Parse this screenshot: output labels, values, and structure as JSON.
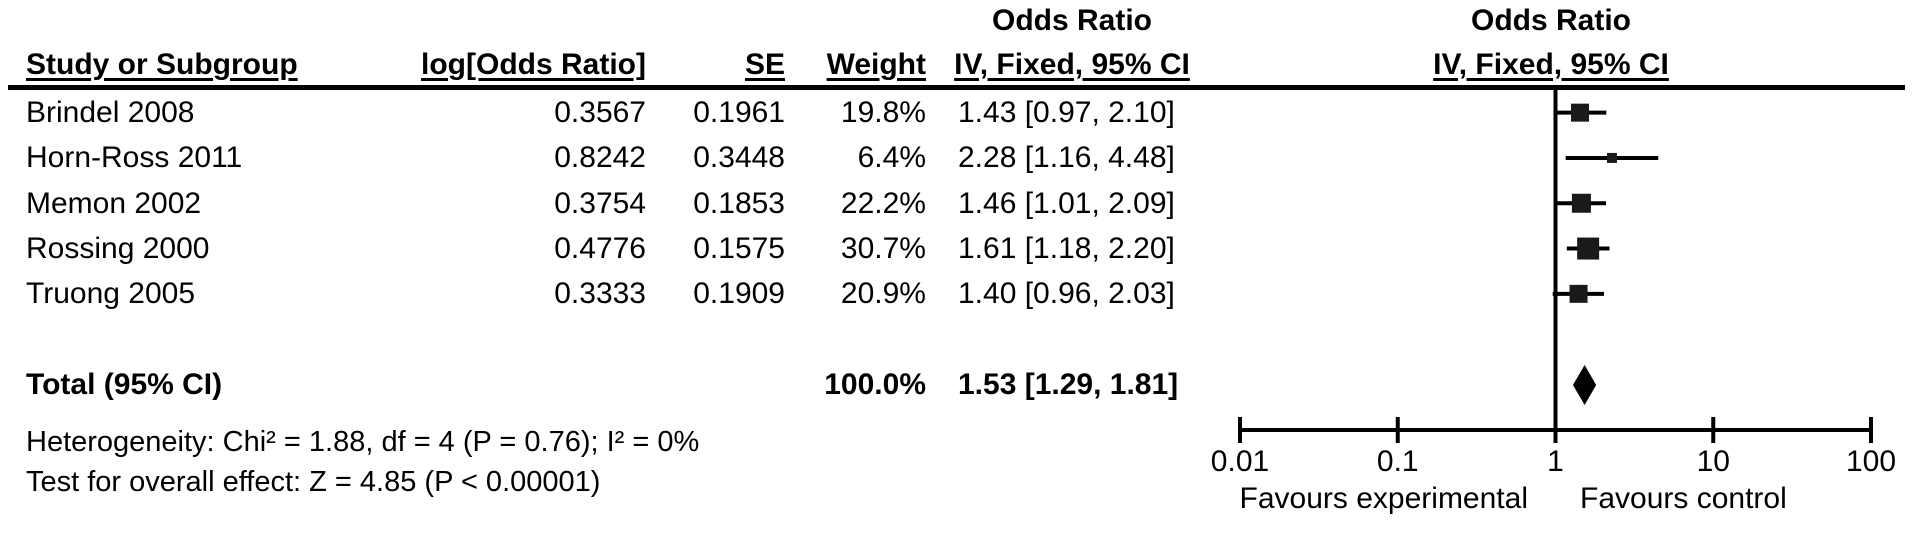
{
  "table": {
    "col_headers": {
      "study": "Study or Subgroup",
      "log_or": "log[Odds Ratio]",
      "se": "SE",
      "weight": "Weight"
    },
    "or_text_header": {
      "line1": "Odds Ratio",
      "line2": "IV, Fixed, 95% CI"
    },
    "or_plot_header": {
      "line1": "Odds Ratio",
      "line2": "IV, Fixed, 95% CI"
    }
  },
  "chart_data": {
    "type": "forest",
    "scale": "log10",
    "axis": {
      "min": 0.01,
      "max": 100,
      "ticks": [
        0.01,
        0.1,
        1,
        10,
        100
      ],
      "tick_labels": [
        "0.01",
        "0.1",
        "1",
        "10",
        "100"
      ],
      "center_line_at": 1
    },
    "studies": [
      {
        "name": "Brindel 2008",
        "log_or": "0.3567",
        "se": "0.1961",
        "weight_label": "19.8%",
        "weight": 19.8,
        "or": 1.43,
        "ci_low": 0.97,
        "ci_high": 2.1,
        "ci_label": "1.43 [0.97, 2.10]"
      },
      {
        "name": "Horn-Ross 2011",
        "log_or": "0.8242",
        "se": "0.3448",
        "weight_label": "6.4%",
        "weight": 6.4,
        "or": 2.28,
        "ci_low": 1.16,
        "ci_high": 4.48,
        "ci_label": "2.28 [1.16, 4.48]"
      },
      {
        "name": "Memon 2002",
        "log_or": "0.3754",
        "se": "0.1853",
        "weight_label": "22.2%",
        "weight": 22.2,
        "or": 1.46,
        "ci_low": 1.01,
        "ci_high": 2.09,
        "ci_label": "1.46 [1.01, 2.09]"
      },
      {
        "name": "Rossing 2000",
        "log_or": "0.4776",
        "se": "0.1575",
        "weight_label": "30.7%",
        "weight": 30.7,
        "or": 1.61,
        "ci_low": 1.18,
        "ci_high": 2.2,
        "ci_label": "1.61 [1.18, 2.20]"
      },
      {
        "name": "Truong 2005",
        "log_or": "0.3333",
        "se": "0.1909",
        "weight_label": "20.9%",
        "weight": 20.9,
        "or": 1.4,
        "ci_low": 0.96,
        "ci_high": 2.03,
        "ci_label": "1.40 [0.96, 2.03]"
      }
    ],
    "total": {
      "label": "Total (95% CI)",
      "weight_label": "100.0%",
      "or": 1.53,
      "ci_low": 1.29,
      "ci_high": 1.81,
      "ci_label": "1.53 [1.29, 1.81]"
    },
    "footers": {
      "heterogeneity": "Heterogeneity: Chi² = 1.88, df = 4 (P = 0.76); I² = 0%",
      "overall_effect": "Test for overall effect: Z = 4.85 (P < 0.00001)"
    },
    "favours_left": "Favours experimental",
    "favours_right": "Favours control"
  },
  "colors": {
    "ink": "#000000",
    "marker": "#1a1a1a",
    "background": "#ffffff"
  }
}
